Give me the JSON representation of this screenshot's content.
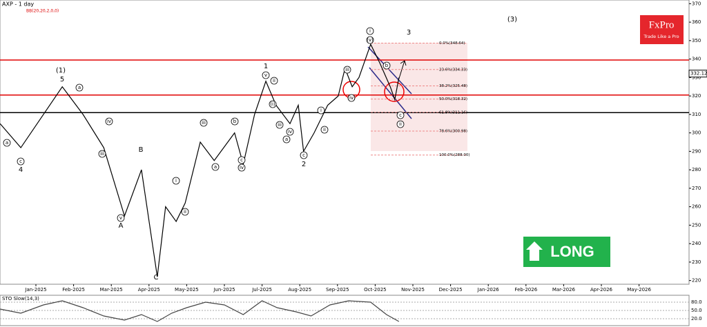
{
  "chart_data": {
    "type": "line",
    "title": "AXP - 1 day",
    "subtitle": "BB(20,20,2,0,0)",
    "categories": [
      "Jan-2025",
      "Feb-2025",
      "Mar-2025",
      "Apr-2025",
      "May-2025",
      "Jun-2025",
      "Jul-2025",
      "Aug-2025",
      "Sep-2025",
      "Oct-2025",
      "Nov-2025",
      "Dec-2025",
      "Jan-2026",
      "Feb-2026",
      "Mar-2026",
      "Apr-2026",
      "May-2026"
    ],
    "series": [
      {
        "name": "AXP",
        "color": "#000000",
        "x": [
          -0.95,
          -0.4,
          0.7,
          1.25,
          1.8,
          2.35,
          2.8,
          3.22,
          3.44,
          3.72,
          3.96,
          4.36,
          4.73,
          5.27,
          5.5,
          5.8,
          6.1,
          6.37,
          6.74,
          6.96,
          7.1,
          7.38,
          7.74,
          8.02,
          8.2,
          8.39,
          8.57,
          8.88,
          9.12,
          9.4,
          9.52,
          9.63
        ],
        "values": [
          305,
          292,
          325,
          310,
          292,
          255,
          280,
          222,
          260,
          252,
          262,
          295,
          285,
          300,
          283,
          310,
          328,
          315,
          305,
          315,
          290,
          300,
          315,
          320,
          335,
          325,
          330,
          348,
          338,
          325,
          318,
          330
        ]
      }
    ],
    "ylim": [
      218,
      372
    ],
    "yticks": [
      220,
      230,
      240,
      250,
      260,
      270,
      280,
      290,
      300,
      310,
      320,
      330,
      340,
      350,
      360,
      370
    ],
    "last_price": {
      "value": 332.12,
      "label": "332.12"
    },
    "levels": [
      {
        "value": 339.5,
        "color": "#e00000"
      },
      {
        "value": 320.5,
        "color": "#e00000"
      },
      {
        "value": 311,
        "color": "#000000"
      }
    ],
    "fib_levels": [
      {
        "value": 348.64,
        "label": "0.0%(348.64)"
      },
      {
        "value": 334.33,
        "label": "23.6%(334.33)"
      },
      {
        "value": 325.48,
        "label": "38.2%(325.48)"
      },
      {
        "value": 318.32,
        "label": "50.0%(318.32)"
      },
      {
        "value": 311.16,
        "label": "61.8%(311.16)"
      },
      {
        "value": 300.98,
        "label": "78.6%(300.98)"
      },
      {
        "value": 288.0,
        "label": "100.0%(288.00)"
      }
    ],
    "annotations": [
      "(1)",
      "5",
      "4",
      "A",
      "B",
      "C",
      "1",
      "2",
      "3",
      "(3)",
      "i",
      "(v)",
      "(iv)",
      "iii",
      "ii",
      "c",
      "b",
      "a",
      "c",
      "a",
      "iv",
      "iii",
      "v",
      "i",
      "ii",
      "v",
      "iv",
      "c",
      "a",
      "b",
      "iii",
      "ii",
      "i",
      "a",
      "iv",
      "iii",
      "(i)",
      "c",
      "ii"
    ],
    "signal": "LONG",
    "brand": {
      "name": "FxPro",
      "tagline": "Trade Like a Pro"
    },
    "oscillator": {
      "title": "STO Slow(14,3)",
      "ylim": [
        0,
        100
      ],
      "yticks": [
        {
          "value": 80,
          "label": "80.0"
        },
        {
          "value": 50,
          "label": "50.0"
        },
        {
          "value": 20,
          "label": "20.0"
        }
      ],
      "series": [
        {
          "name": "%K",
          "color": "#444444",
          "x": [
            -0.95,
            -0.4,
            0.2,
            0.7,
            1.25,
            1.8,
            2.35,
            2.8,
            3.22,
            3.6,
            4.0,
            4.5,
            5.0,
            5.5,
            6.0,
            6.4,
            6.9,
            7.3,
            7.8,
            8.3,
            8.88,
            9.3,
            9.63
          ],
          "values": [
            55,
            40,
            70,
            85,
            60,
            30,
            15,
            35,
            10,
            40,
            60,
            80,
            70,
            35,
            85,
            60,
            45,
            30,
            70,
            85,
            80,
            35,
            10
          ]
        }
      ]
    }
  }
}
